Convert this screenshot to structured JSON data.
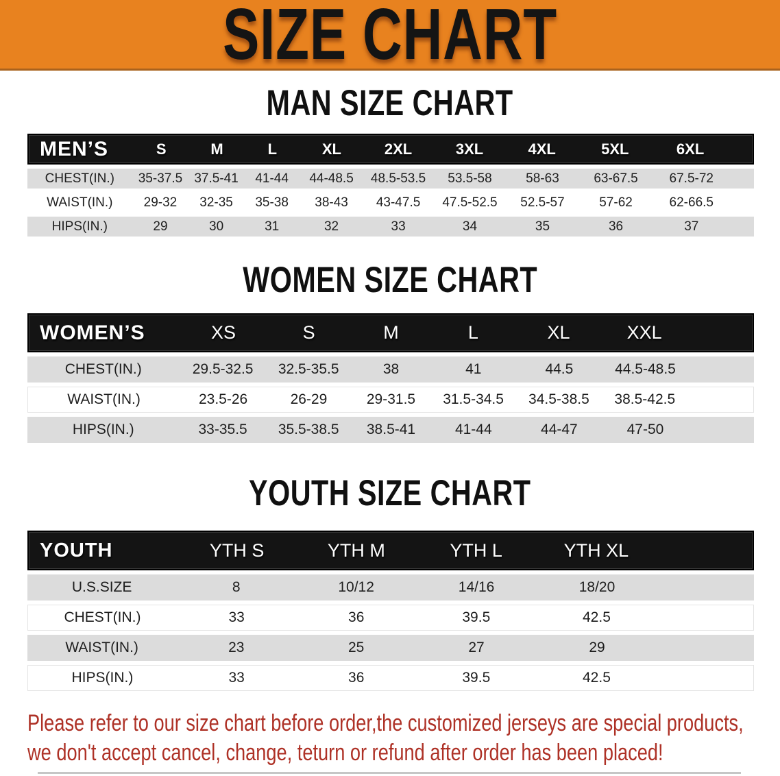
{
  "banner": {
    "title": "SIZE CHART"
  },
  "men": {
    "heading": "MAN SIZE CHART",
    "group_label": "MEN’S",
    "sizes": [
      "S",
      "M",
      "L",
      "XL",
      "2XL",
      "3XL",
      "4XL",
      "5XL",
      "6XL"
    ],
    "rows": [
      {
        "label": "CHEST(IN.)",
        "values": [
          "35-37.5",
          "37.5-41",
          "41-44",
          "44-48.5",
          "48.5-53.5",
          "53.5-58",
          "58-63",
          "63-67.5",
          "67.5-72"
        ]
      },
      {
        "label": "WAIST(IN.)",
        "values": [
          "29-32",
          "32-35",
          "35-38",
          "38-43",
          "43-47.5",
          "47.5-52.5",
          "52.5-57",
          "57-62",
          "62-66.5"
        ]
      },
      {
        "label": "HIPS(IN.)",
        "values": [
          "29",
          "30",
          "31",
          "32",
          "33",
          "34",
          "35",
          "36",
          "37"
        ]
      }
    ]
  },
  "women": {
    "heading": "WOMEN SIZE CHART",
    "group_label": "WOMEN’S",
    "sizes": [
      "XS",
      "S",
      "M",
      "L",
      "XL",
      "XXL"
    ],
    "rows": [
      {
        "label": "CHEST(IN.)",
        "values": [
          "29.5-32.5",
          "32.5-35.5",
          "38",
          "41",
          "44.5",
          "44.5-48.5"
        ]
      },
      {
        "label": "WAIST(IN.)",
        "values": [
          "23.5-26",
          "26-29",
          "29-31.5",
          "31.5-34.5",
          "34.5-38.5",
          "38.5-42.5"
        ]
      },
      {
        "label": "HIPS(IN.)",
        "values": [
          "33-35.5",
          "35.5-38.5",
          "38.5-41",
          "41-44",
          "44-47",
          "47-50"
        ]
      }
    ]
  },
  "youth": {
    "heading": "YOUTH SIZE CHART",
    "group_label": "YOUTH",
    "sizes": [
      "YTH S",
      "YTH M",
      "YTH L",
      "YTH XL"
    ],
    "rows": [
      {
        "label": "U.S.SIZE",
        "values": [
          "8",
          "10/12",
          "14/16",
          "18/20"
        ]
      },
      {
        "label": "CHEST(IN.)",
        "values": [
          "33",
          "36",
          "39.5",
          "42.5"
        ]
      },
      {
        "label": "WAIST(IN.)",
        "values": [
          "23",
          "25",
          "27",
          "29"
        ]
      },
      {
        "label": "HIPS(IN.)",
        "values": [
          "33",
          "36",
          "39.5",
          "42.5"
        ]
      }
    ]
  },
  "disclaimer": {
    "line1": "Please refer to our size chart before order,the customized jerseys are special products,",
    "line2": "we don't accept cancel, change, teturn or refund after order has been placed!"
  },
  "colors": {
    "banner_orange": "#E8821F",
    "banner_border": "#A9621D",
    "table_header_black": "#141414",
    "row_gray": "#DCDCDC",
    "row_white": "#FFFFFF",
    "title_black": "#141414",
    "disclaimer_red": "#AE3126"
  }
}
